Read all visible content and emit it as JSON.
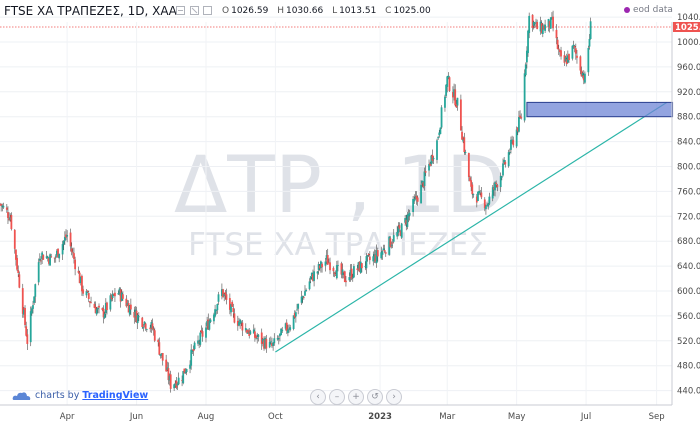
{
  "header": {
    "symbol": "FTSE ΧΑ ΤΡΑΠΕΖΕΣ, 1D, ΧΑΑ",
    "open_label": "O",
    "open": "1026.59",
    "high_label": "H",
    "high": "1030.66",
    "low_label": "L",
    "low": "1013.51",
    "close_label": "C",
    "close": "1025.00",
    "eod_label": "eod data"
  },
  "watermark": {
    "line1": "ΔΤΡ , 1D",
    "line2": "FTSE ΧΑ ΤΡΑΠΕΖΕΣ"
  },
  "branding": {
    "prefix": "charts by ",
    "name": "TradingView"
  },
  "icons": {
    "star": "favorite-icon",
    "settings": "settings-icon",
    "eod": "dot-icon"
  },
  "colors": {
    "up": "#26a69a",
    "down": "#ef5350",
    "candle_body_up": "#26a69a",
    "candle_body_down": "#ef5350",
    "trendline": "#2bb5a8",
    "zone": "#6f86d6",
    "price_tag": "#ef5350"
  },
  "nav": [
    "‹",
    "–",
    "+",
    "↺",
    "›"
  ],
  "chart_data": {
    "type": "candlestick",
    "x_ticks": [
      "Apr",
      "Jun",
      "Aug",
      "Oct",
      "2023",
      "Mar",
      "May",
      "Jul",
      "Sep"
    ],
    "y_ticks": [
      440,
      480,
      520,
      560,
      600,
      640,
      680,
      720,
      760,
      800,
      840,
      880,
      920,
      960,
      1000,
      1040
    ],
    "ylim": [
      420,
      1050
    ],
    "last_price": "1025.",
    "last_price_value": 1025.0,
    "series": [
      {
        "name": "close_path_keypoints",
        "x": [
          "2022-02-01",
          "2022-02-10",
          "2022-02-25",
          "2022-03-08",
          "2022-03-20",
          "2022-04-01",
          "2022-04-15",
          "2022-05-01",
          "2022-05-15",
          "2022-06-01",
          "2022-06-15",
          "2022-07-01",
          "2022-07-10",
          "2022-07-20",
          "2022-08-01",
          "2022-08-15",
          "2022-08-25",
          "2022-09-10",
          "2022-09-28",
          "2022-10-15",
          "2022-11-01",
          "2022-11-15",
          "2022-12-01",
          "2022-12-15",
          "2023-01-01",
          "2023-01-20",
          "2023-02-05",
          "2023-02-20",
          "2023-03-01",
          "2023-03-10",
          "2023-03-22",
          "2023-04-05",
          "2023-04-20",
          "2023-05-05",
          "2023-05-12",
          "2023-05-20",
          "2023-06-01",
          "2023-06-10",
          "2023-06-20",
          "2023-06-30",
          "2023-07-05"
        ],
        "values": [
          740,
          720,
          520,
          660,
          650,
          690,
          600,
          560,
          600,
          560,
          540,
          450,
          460,
          500,
          540,
          600,
          560,
          530,
          510,
          550,
          620,
          650,
          620,
          640,
          660,
          700,
          760,
          840,
          940,
          900,
          760,
          740,
          800,
          880,
          1040,
          1020,
          1030,
          960,
          990,
          940,
          1025
        ]
      }
    ],
    "annotations": {
      "support_trendline": {
        "from": {
          "x": "2022-10-01",
          "y": 502
        },
        "to": {
          "x": "2023-09-10",
          "y": 903
        }
      },
      "resistance_zone": {
        "x_start": "2023-05-10",
        "x_end": "2023-09-15",
        "y_low": 880,
        "y_high": 903
      }
    }
  }
}
